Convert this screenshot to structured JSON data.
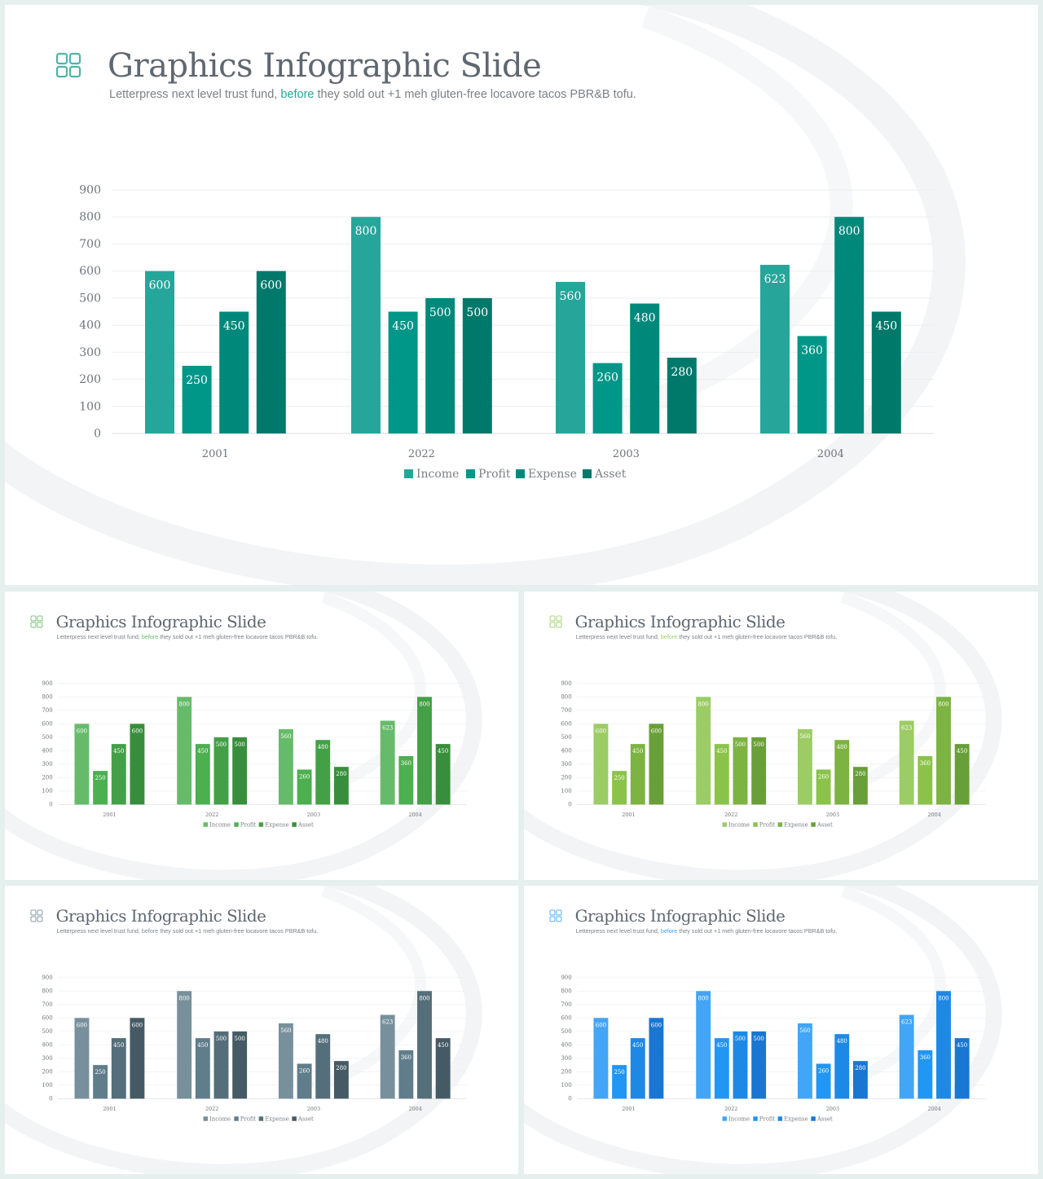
{
  "slides": [
    {
      "title": "Graphics Infographic Slide",
      "subtitle_before": "Letterpress next level trust fund, ",
      "subtitle_highlight": "before",
      "subtitle_after": " they sold out +1 meh gluten-free locavore tacos PBR&B tofu.",
      "icon": "grid-icon",
      "colors": {
        "icon": "#4fb3a9",
        "highlight": "#26a69a",
        "series": [
          "#26a69a",
          "#009688",
          "#00897b",
          "#00796b"
        ]
      }
    },
    {
      "title": "Graphics Infographic Slide",
      "subtitle_before": "Letterpress next level trust fund, ",
      "subtitle_highlight": "before",
      "subtitle_after": " they sold out +1 meh gluten-free locavore tacos PBR&B tofu.",
      "icon": "grid-icon",
      "colors": {
        "icon": "#81c784",
        "highlight": "#66bb6a",
        "series": [
          "#66bb6a",
          "#4caf50",
          "#43a047",
          "#388e3c"
        ]
      }
    },
    {
      "title": "Graphics Infographic Slide",
      "subtitle_before": "Letterpress next level trust fund, ",
      "subtitle_highlight": "before",
      "subtitle_after": " they sold out +1 meh gluten-free locavore tacos PBR&B tofu.",
      "icon": "grid-icon",
      "colors": {
        "icon": "#aed581",
        "highlight": "#9ccc65",
        "series": [
          "#9ccc65",
          "#8bc34a",
          "#7cb342",
          "#689f38"
        ]
      }
    },
    {
      "title": "Graphics Infographic Slide",
      "subtitle_before": "Letterpress next level trust fund, ",
      "subtitle_highlight": "before",
      "subtitle_after": " they sold out +1 meh gluten-free locavore tacos PBR&B tofu.",
      "icon": "grid-icon",
      "colors": {
        "icon": "#90a4ae",
        "highlight": "#78909c",
        "series": [
          "#78909c",
          "#607d8b",
          "#546e7a",
          "#455a64"
        ]
      }
    },
    {
      "title": "Graphics Infographic Slide",
      "subtitle_before": "Letterpress next level trust fund, ",
      "subtitle_highlight": "before",
      "subtitle_after": " they sold out +1 meh gluten-free locavore tacos PBR&B tofu.",
      "icon": "grid-icon",
      "colors": {
        "icon": "#64b5f6",
        "highlight": "#42a5f5",
        "series": [
          "#42a5f5",
          "#2196f3",
          "#1e88e5",
          "#1976d2"
        ]
      }
    }
  ],
  "chart_data": {
    "type": "bar",
    "categories": [
      "2001",
      "2022",
      "2003",
      "2004"
    ],
    "series": [
      {
        "name": "Income",
        "values": [
          600,
          800,
          560,
          623
        ]
      },
      {
        "name": "Profit",
        "values": [
          250,
          450,
          260,
          360
        ]
      },
      {
        "name": "Expense",
        "values": [
          450,
          500,
          480,
          800
        ]
      },
      {
        "name": "Asset",
        "values": [
          600,
          500,
          280,
          450
        ]
      }
    ],
    "ylim": [
      0,
      900
    ],
    "yticks": [
      0,
      100,
      200,
      300,
      400,
      500,
      600,
      700,
      800,
      900
    ],
    "grid": true,
    "legend": "bottom",
    "data_labels": true
  }
}
